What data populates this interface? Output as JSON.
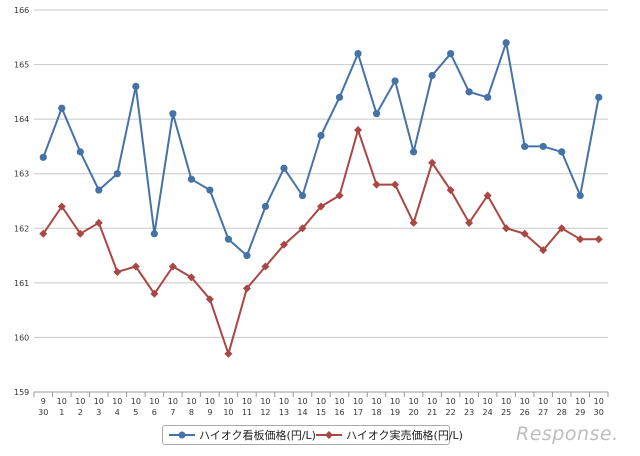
{
  "chart_data": {
    "type": "line",
    "categories": [
      [
        "9",
        "30"
      ],
      [
        "10",
        "1"
      ],
      [
        "10",
        "2"
      ],
      [
        "10",
        "3"
      ],
      [
        "10",
        "4"
      ],
      [
        "10",
        "5"
      ],
      [
        "10",
        "6"
      ],
      [
        "10",
        "7"
      ],
      [
        "10",
        "8"
      ],
      [
        "10",
        "9"
      ],
      [
        "10",
        "10"
      ],
      [
        "10",
        "11"
      ],
      [
        "10",
        "12"
      ],
      [
        "10",
        "13"
      ],
      [
        "10",
        "14"
      ],
      [
        "10",
        "15"
      ],
      [
        "10",
        "16"
      ],
      [
        "10",
        "17"
      ],
      [
        "10",
        "18"
      ],
      [
        "10",
        "19"
      ],
      [
        "10",
        "20"
      ],
      [
        "10",
        "21"
      ],
      [
        "10",
        "22"
      ],
      [
        "10",
        "23"
      ],
      [
        "10",
        "24"
      ],
      [
        "10",
        "25"
      ],
      [
        "10",
        "26"
      ],
      [
        "10",
        "27"
      ],
      [
        "10",
        "28"
      ],
      [
        "10",
        "29"
      ],
      [
        "10",
        "30"
      ]
    ],
    "series": [
      {
        "name": "ハイオク看板価格(円/L)",
        "color": "#4572a7",
        "marker": "circle",
        "values": [
          163.3,
          164.2,
          163.4,
          162.7,
          163.0,
          164.6,
          161.9,
          164.1,
          162.9,
          162.7,
          161.8,
          161.5,
          162.4,
          163.1,
          162.6,
          163.7,
          164.4,
          165.2,
          164.1,
          164.7,
          163.4,
          164.8,
          165.2,
          164.5,
          164.4,
          165.4,
          163.5,
          163.5,
          163.4,
          162.6,
          164.4
        ]
      },
      {
        "name": "ハイオク実売価格(円/L)",
        "color": "#aa4643",
        "marker": "diamond",
        "values": [
          161.9,
          162.4,
          161.9,
          162.1,
          161.2,
          161.3,
          160.8,
          161.3,
          161.1,
          160.7,
          159.7,
          160.9,
          161.3,
          161.7,
          162.0,
          162.4,
          162.6,
          163.8,
          162.8,
          162.8,
          162.1,
          163.2,
          162.7,
          162.1,
          162.6,
          162.0,
          161.9,
          161.6,
          162.0,
          161.8,
          161.8
        ]
      }
    ],
    "y_ticks": [
      159,
      160,
      161,
      162,
      163,
      164,
      165,
      166
    ],
    "ylim": [
      159,
      166
    ],
    "grid": true,
    "legend_position": "bottom"
  },
  "watermark": "Response."
}
